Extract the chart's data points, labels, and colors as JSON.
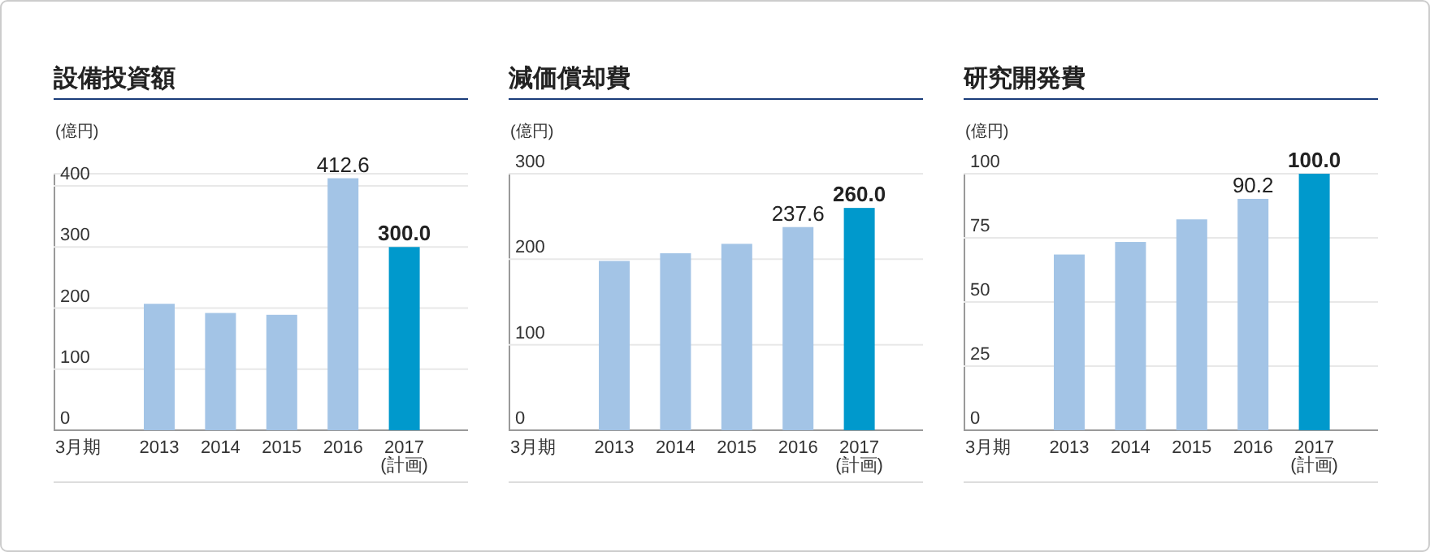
{
  "chart_data": [
    {
      "type": "bar",
      "title": "設備投資額",
      "ylabel": "(億円)",
      "xlabel": "3月期",
      "categories": [
        "2013",
        "2014",
        "2015",
        "2016",
        "2017 (計画)"
      ],
      "values": [
        207,
        192,
        189,
        412.6,
        300.0
      ],
      "colors": [
        "#a3c4e6",
        "#a3c4e6",
        "#a3c4e6",
        "#a3c4e6",
        "#0099cc"
      ],
      "value_labels": [
        null,
        null,
        null,
        "412.6",
        "300.0"
      ],
      "ylim": [
        0,
        420
      ],
      "yticks": [
        0,
        100,
        200,
        300,
        400
      ],
      "grid": "y"
    },
    {
      "type": "bar",
      "title": "減価償却費",
      "ylabel": "(億円)",
      "xlabel": "3月期",
      "categories": [
        "2013",
        "2014",
        "2015",
        "2016",
        "2017 (計画)"
      ],
      "values": [
        198,
        207,
        218,
        237.6,
        260.0
      ],
      "colors": [
        "#a3c4e6",
        "#a3c4e6",
        "#a3c4e6",
        "#a3c4e6",
        "#0099cc"
      ],
      "value_labels": [
        null,
        null,
        null,
        "237.6",
        "260.0"
      ],
      "ylim": [
        0,
        300
      ],
      "yticks": [
        0,
        100,
        200,
        300
      ],
      "grid": "y"
    },
    {
      "type": "bar",
      "title": "研究開発費",
      "ylabel": "(億円)",
      "xlabel": "3月期",
      "categories": [
        "2013",
        "2014",
        "2015",
        "2016",
        "2017 (計画)"
      ],
      "values": [
        68.5,
        73.4,
        82.2,
        90.2,
        100.0
      ],
      "colors": [
        "#a3c4e6",
        "#a3c4e6",
        "#a3c4e6",
        "#a3c4e6",
        "#0099cc"
      ],
      "value_labels": [
        null,
        null,
        null,
        "90.2",
        "100.0"
      ],
      "ylim": [
        0,
        100
      ],
      "yticks": [
        0,
        25,
        50,
        75,
        100
      ],
      "grid": "y"
    }
  ]
}
